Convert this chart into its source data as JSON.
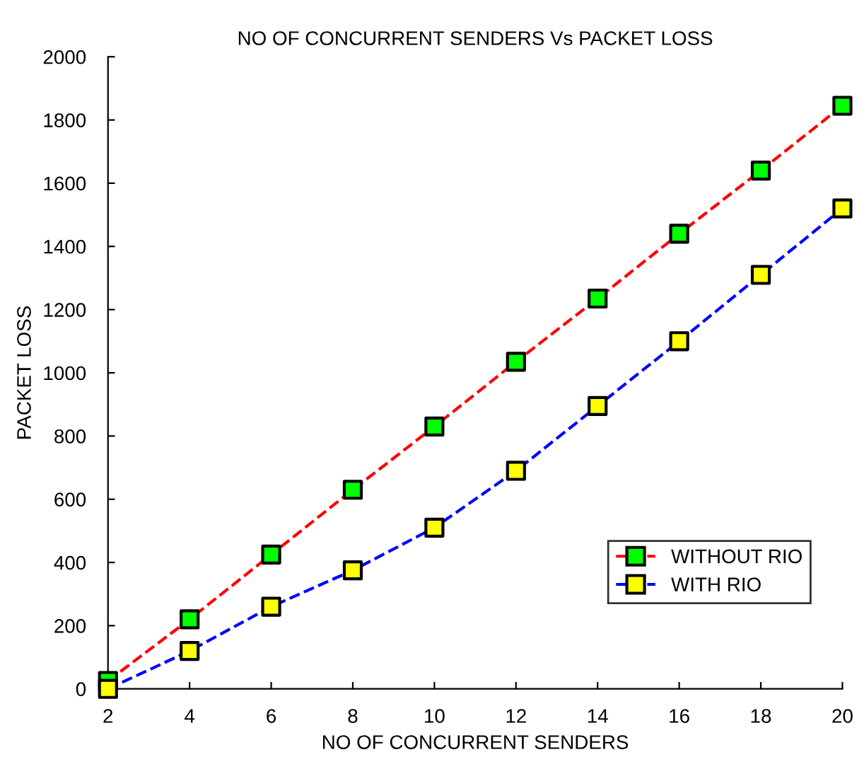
{
  "chart_data": {
    "type": "line",
    "title": "NO OF CONCURRENT SENDERS Vs PACKET LOSS",
    "xlabel": "NO OF CONCURRENT SENDERS",
    "ylabel": "PACKET LOSS",
    "x": [
      2,
      4,
      6,
      8,
      10,
      12,
      14,
      16,
      18,
      20
    ],
    "series": [
      {
        "name": "WITHOUT RIO",
        "color": "#ff0000",
        "colors": [
          "#00ff00",
          "#00ff00",
          "#00ff00",
          "#00ff00",
          "#00ff00",
          "#00ff00",
          "#00ff00",
          "#00ff00",
          "#00ff00",
          "#00ff00"
        ],
        "values": [
          25,
          220,
          425,
          630,
          830,
          1035,
          1235,
          1440,
          1640,
          1845
        ]
      },
      {
        "name": "WITH RIO",
        "color": "#0000ff",
        "colors": [
          "#ffff00",
          "#ffff00",
          "#ffff00",
          "#ffff00",
          "#ffff00",
          "#ffff00",
          "#ffff00",
          "#ffff00",
          "#ffff00",
          "#ffff00"
        ],
        "values": [
          0,
          120,
          260,
          375,
          510,
          690,
          895,
          1100,
          1310,
          1520
        ]
      }
    ],
    "xlim": [
      2,
      20
    ],
    "xticks": [
      2,
      4,
      6,
      8,
      10,
      12,
      14,
      16,
      18,
      20
    ],
    "ylim": [
      0,
      2000
    ],
    "yticks": [
      0,
      200,
      400,
      600,
      800,
      1000,
      1200,
      1400,
      1600,
      1800,
      2000
    ],
    "grid": false,
    "legend": "lower right",
    "marker": "square",
    "line_style": "dashed"
  }
}
